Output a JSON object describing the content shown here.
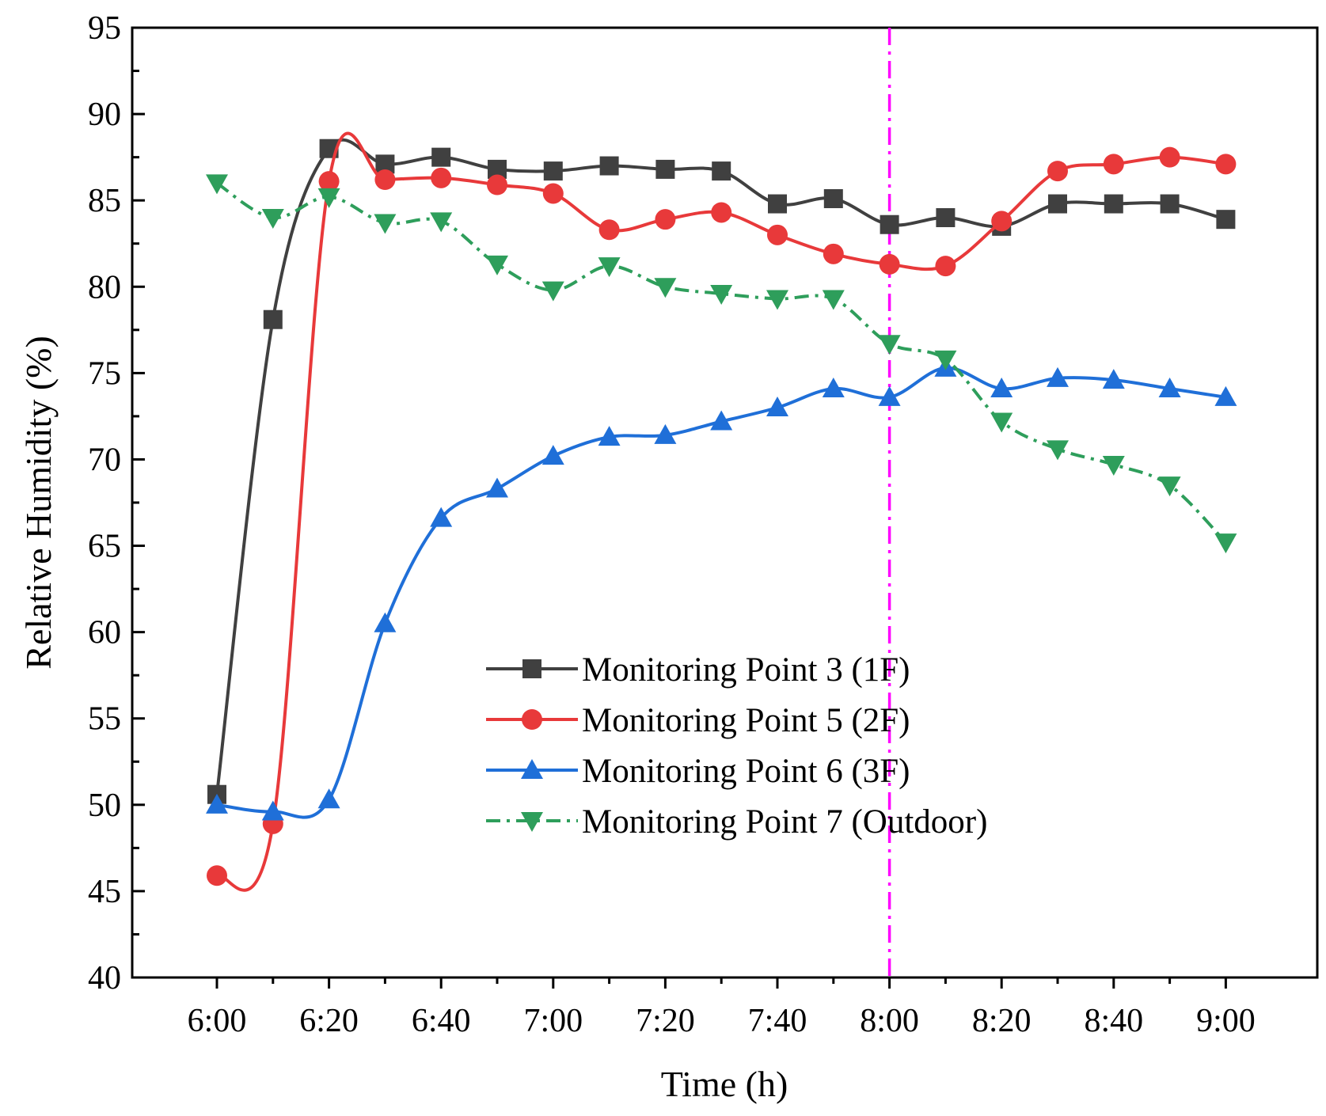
{
  "chart_data": {
    "type": "line",
    "title": "",
    "xlabel": "Time (h)",
    "ylabel": "Relative Humidity (%)",
    "x": [
      "6:00",
      "6:10",
      "6:20",
      "6:30",
      "6:40",
      "6:50",
      "7:00",
      "7:10",
      "7:20",
      "7:30",
      "7:40",
      "7:50",
      "8:00",
      "8:10",
      "8:20",
      "8:30",
      "8:40",
      "8:50",
      "9:00"
    ],
    "x_tick_labels": [
      "6:00",
      "6:20",
      "6:40",
      "7:00",
      "7:20",
      "7:40",
      "8:00",
      "8:20",
      "8:40",
      "9:00"
    ],
    "y_ticks": [
      40,
      45,
      50,
      55,
      60,
      65,
      70,
      75,
      80,
      85,
      90,
      95
    ],
    "ylim": [
      40,
      95
    ],
    "grid": false,
    "legend_position": "center",
    "reference_line": {
      "x": "8:00",
      "style": "dash-dot",
      "color": "#ff00ff"
    },
    "series": [
      {
        "name": "Monitoring Point 3 (1F)",
        "color": "#404040",
        "marker": "square",
        "line_style": "solid",
        "values": [
          50.6,
          78.1,
          88.0,
          87.1,
          87.5,
          86.8,
          86.7,
          87.0,
          86.8,
          86.7,
          84.8,
          85.1,
          83.6,
          84.0,
          83.5,
          84.8,
          84.8,
          84.8,
          83.9
        ]
      },
      {
        "name": "Monitoring Point 5 (2F)",
        "color": "#e8393a",
        "marker": "circle",
        "line_style": "solid",
        "values": [
          45.9,
          48.9,
          86.1,
          86.2,
          86.3,
          85.9,
          85.4,
          83.3,
          83.9,
          84.3,
          83.0,
          81.9,
          81.3,
          81.2,
          83.8,
          86.7,
          87.1,
          87.5,
          87.1
        ]
      },
      {
        "name": "Monitoring Point 6 (3F)",
        "color": "#1f6fd8",
        "marker": "triangle-up",
        "line_style": "solid",
        "values": [
          50.0,
          49.6,
          50.3,
          60.5,
          66.6,
          68.3,
          70.2,
          71.3,
          71.4,
          72.2,
          73.0,
          74.1,
          73.6,
          75.3,
          74.1,
          74.7,
          74.6,
          74.1,
          73.6
        ]
      },
      {
        "name": "Monitoring Point 7 (Outdoor)",
        "color": "#2e9e5b",
        "marker": "triangle-down",
        "line_style": "dash-dot",
        "values": [
          86.0,
          84.0,
          85.2,
          83.7,
          83.8,
          81.3,
          79.8,
          81.2,
          80.0,
          79.6,
          79.3,
          79.3,
          76.7,
          75.8,
          72.2,
          70.6,
          69.7,
          68.5,
          65.2
        ]
      }
    ]
  }
}
